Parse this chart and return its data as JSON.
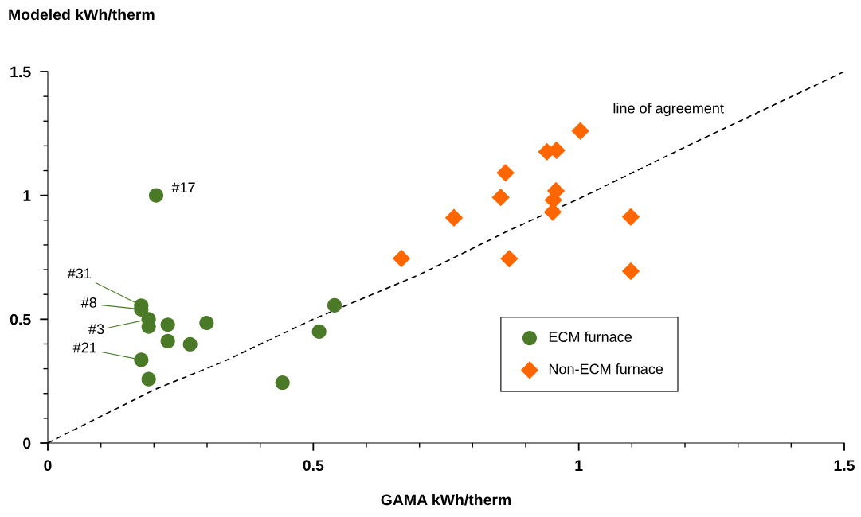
{
  "chart_data": {
    "type": "scatter",
    "xlabel": "GAMA kWh/therm",
    "ylabel": "Modeled kWh/therm",
    "xlim": [
      0,
      1.5
    ],
    "ylim": [
      0,
      1.5
    ],
    "xticks": [
      0,
      0.5,
      1,
      1.5
    ],
    "yticks": [
      0,
      0.5,
      1,
      1.5
    ],
    "grid": false,
    "legend": "bottom right",
    "series": [
      {
        "name": "ECM furnace",
        "color": "#4a7a28",
        "marker": "circle",
        "x": [
          0.204,
          0.176,
          0.176,
          0.19,
          0.19,
          0.226,
          0.299,
          0.226,
          0.268,
          0.176,
          0.19,
          0.442,
          0.511,
          0.54
        ],
        "values": [
          1.0,
          0.555,
          0.54,
          0.5,
          0.47,
          0.478,
          0.485,
          0.412,
          0.399,
          0.336,
          0.258,
          0.244,
          0.45,
          0.556
        ]
      },
      {
        "name": "Non-ECM furnace",
        "color": "#ff6600",
        "marker": "diamond",
        "x": [
          1.003,
          0.94,
          0.958,
          0.862,
          0.853,
          0.957,
          0.952,
          0.951,
          1.098,
          0.869,
          1.098,
          0.765,
          0.666
        ],
        "values": [
          1.26,
          1.176,
          1.182,
          1.091,
          0.992,
          1.018,
          0.981,
          0.933,
          0.913,
          0.744,
          0.694,
          0.91,
          0.745
        ]
      },
      {
        "name": "line of agreement",
        "type": "line",
        "color": "#000000",
        "marker": "none",
        "line_style": "dashed",
        "x": [
          0,
          0.2,
          0.33,
          0.5,
          0.6,
          0.7,
          0.87,
          1.0,
          1.2,
          1.5
        ],
        "values": [
          0,
          0.215,
          0.328,
          0.5,
          0.59,
          0.68,
          0.86,
          0.986,
          1.195,
          1.5
        ]
      }
    ],
    "annotations": [
      {
        "text": "#17",
        "x": 0.204,
        "y": 1.0
      },
      {
        "text": "#31",
        "x": 0.176,
        "y": 0.555
      },
      {
        "text": "#8",
        "x": 0.176,
        "y": 0.54
      },
      {
        "text": "#3",
        "x": 0.19,
        "y": 0.5
      },
      {
        "text": "#21",
        "x": 0.176,
        "y": 0.336
      }
    ]
  }
}
